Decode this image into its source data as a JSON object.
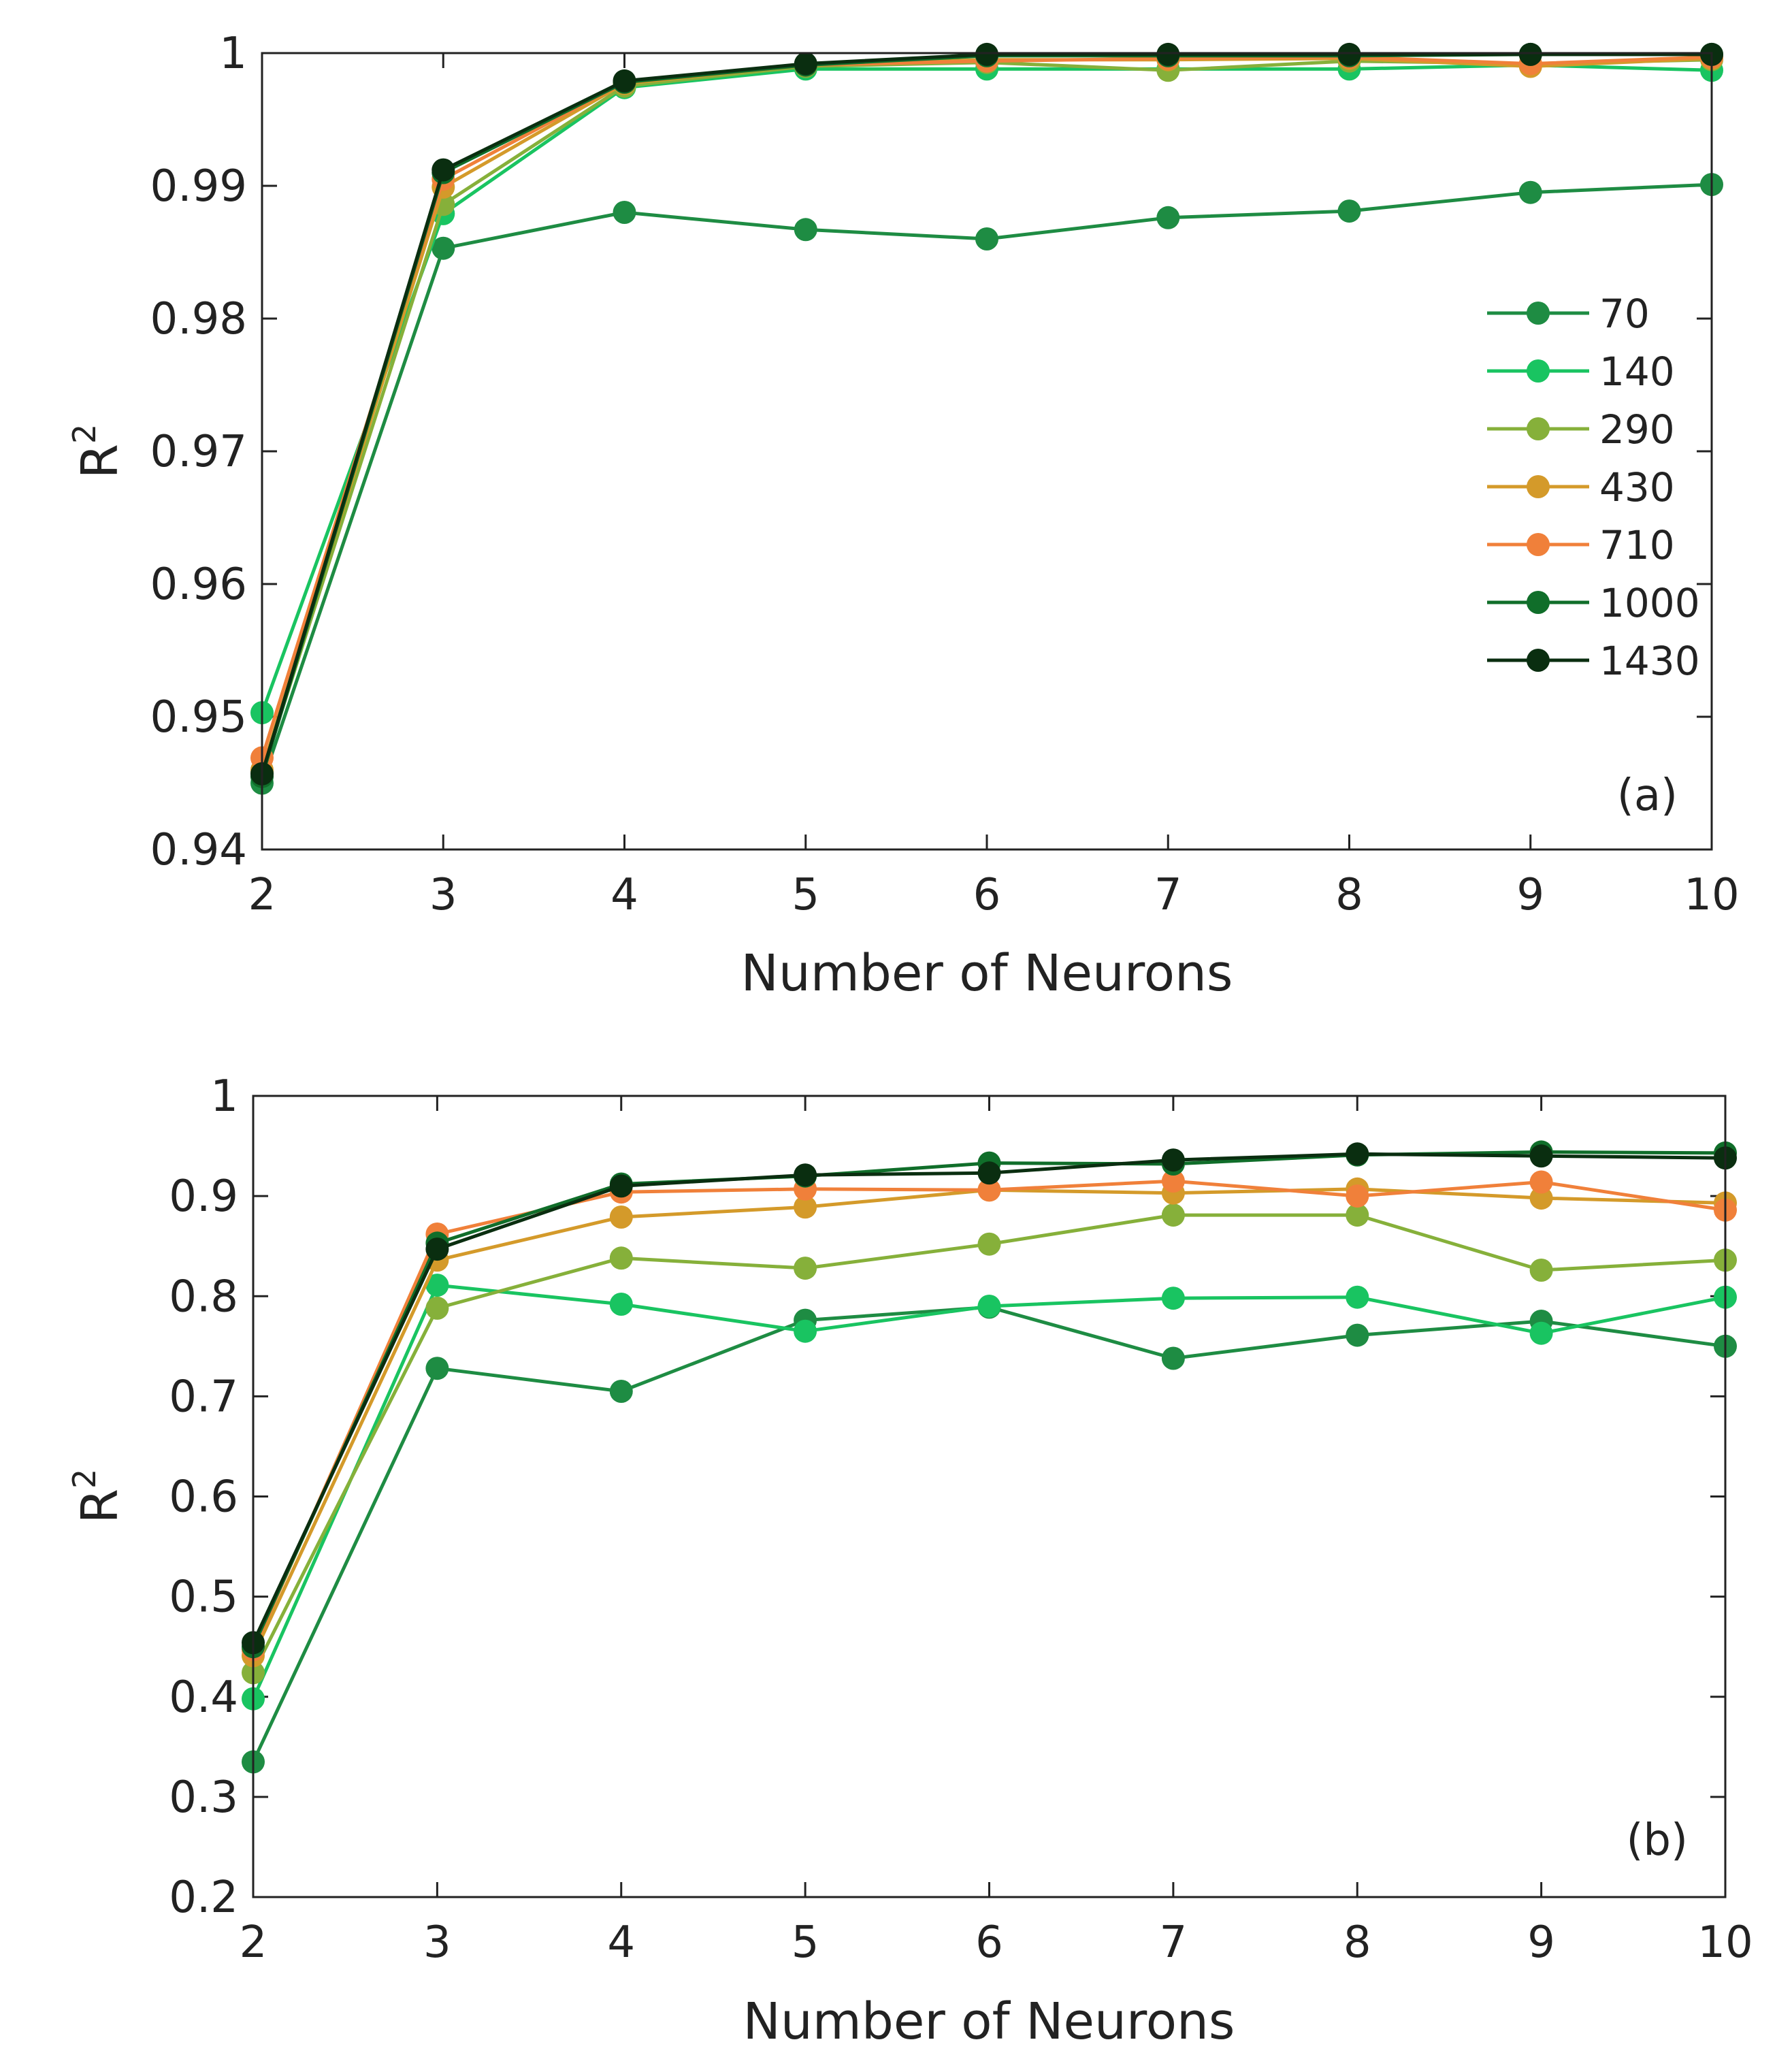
{
  "chart_data": [
    {
      "type": "line",
      "panel_label": "(a)",
      "xlabel": "Number of Neurons",
      "ylabel": "R",
      "ylabel_superscript": "2",
      "x": [
        2,
        3,
        4,
        5,
        6,
        7,
        8,
        9,
        10
      ],
      "xlim": [
        2,
        10
      ],
      "ylim": [
        0.94,
        1
      ],
      "xticks": [
        "2",
        "3",
        "4",
        "5",
        "6",
        "7",
        "8",
        "9",
        "10"
      ],
      "yticks": [
        0.94,
        0.95,
        0.96,
        0.97,
        0.98,
        0.99,
        1
      ],
      "ytick_labels": [
        "0.94",
        "0.95",
        "0.96",
        "0.97",
        "0.98",
        "0.99",
        "1"
      ],
      "legend_position": "right",
      "series": [
        {
          "name": "70",
          "color": "#1e8c43",
          "values": [
            0.945,
            0.9853,
            0.988,
            0.9867,
            0.986,
            0.9876,
            0.9881,
            0.9895,
            0.9901
          ]
        },
        {
          "name": "140",
          "color": "#19c461",
          "values": [
            0.9503,
            0.9879,
            0.9974,
            0.9988,
            0.9988,
            0.9988,
            0.9988,
            0.9991,
            0.9987
          ]
        },
        {
          "name": "290",
          "color": "#86b03a",
          "values": [
            0.9458,
            0.9886,
            0.9975,
            0.999,
            0.9993,
            0.9987,
            0.9994,
            0.9992,
            0.9995
          ]
        },
        {
          "name": "430",
          "color": "#d49a2a",
          "values": [
            0.946,
            0.9899,
            0.9977,
            0.9991,
            0.9995,
            0.9995,
            0.9996,
            0.999,
            0.9996
          ]
        },
        {
          "name": "710",
          "color": "#f0803a",
          "values": [
            0.9469,
            0.9905,
            0.9978,
            0.9991,
            0.9994,
            0.9996,
            0.9997,
            0.9992,
            0.9997
          ]
        },
        {
          "name": "1000",
          "color": "#106e2a",
          "values": [
            0.9455,
            0.991,
            0.9978,
            0.9991,
            0.9998,
            0.9998,
            0.9998,
            0.9999,
            0.9999
          ]
        },
        {
          "name": "1430",
          "color": "#0a2e10",
          "values": [
            0.9457,
            0.9912,
            0.9979,
            0.9992,
            0.9999,
            0.9999,
            0.9999,
            0.9999,
            0.9999
          ]
        }
      ]
    },
    {
      "type": "line",
      "panel_label": "(b)",
      "xlabel": "Number of Neurons",
      "ylabel": "R",
      "ylabel_superscript": "2",
      "x": [
        2,
        3,
        4,
        5,
        6,
        7,
        8,
        9,
        10
      ],
      "xlim": [
        2,
        10
      ],
      "ylim": [
        0.2,
        1
      ],
      "xticks": [
        "2",
        "3",
        "4",
        "5",
        "6",
        "7",
        "8",
        "9",
        "10"
      ],
      "yticks": [
        0.2,
        0.3,
        0.4,
        0.5,
        0.6,
        0.7,
        0.8,
        0.9,
        1
      ],
      "ytick_labels": [
        "0.2",
        "0.3",
        "0.4",
        "0.5",
        "0.6",
        "0.7",
        "0.8",
        "0.9",
        "1"
      ],
      "series": [
        {
          "name": "70",
          "color": "#1e8c43",
          "values": [
            0.335,
            0.728,
            0.705,
            0.776,
            0.789,
            0.738,
            0.761,
            0.775,
            0.75
          ]
        },
        {
          "name": "140",
          "color": "#19c461",
          "values": [
            0.398,
            0.811,
            0.792,
            0.765,
            0.79,
            0.798,
            0.799,
            0.763,
            0.799
          ]
        },
        {
          "name": "290",
          "color": "#86b03a",
          "values": [
            0.424,
            0.788,
            0.838,
            0.828,
            0.852,
            0.881,
            0.881,
            0.826,
            0.836
          ]
        },
        {
          "name": "430",
          "color": "#d49a2a",
          "values": [
            0.441,
            0.836,
            0.879,
            0.889,
            0.906,
            0.903,
            0.907,
            0.898,
            0.893
          ]
        },
        {
          "name": "710",
          "color": "#f0803a",
          "values": [
            0.447,
            0.862,
            0.904,
            0.907,
            0.906,
            0.915,
            0.9,
            0.914,
            0.886
          ]
        },
        {
          "name": "1000",
          "color": "#106e2a",
          "values": [
            0.45,
            0.853,
            0.912,
            0.92,
            0.933,
            0.932,
            0.941,
            0.944,
            0.943
          ]
        },
        {
          "name": "1430",
          "color": "#0a2e10",
          "values": [
            0.454,
            0.847,
            0.91,
            0.921,
            0.923,
            0.936,
            0.942,
            0.94,
            0.938
          ]
        }
      ]
    }
  ]
}
